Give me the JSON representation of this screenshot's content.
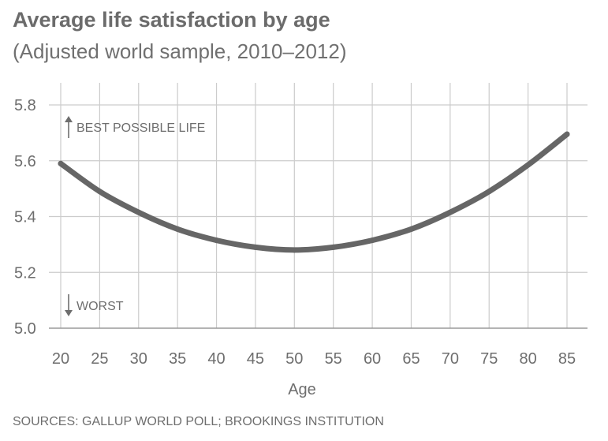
{
  "chart_data": {
    "type": "line",
    "title": "Average life satisfaction by age",
    "subtitle": "(Adjusted world sample, 2010–2012)",
    "xlabel": "Age",
    "ylabel": "",
    "x": [
      20,
      25,
      30,
      35,
      40,
      45,
      50,
      55,
      60,
      65,
      70,
      75,
      80,
      85
    ],
    "y_ticks": [
      "5.0",
      "5.2",
      "5.4",
      "5.6",
      "5.8"
    ],
    "xlim": [
      20,
      85
    ],
    "ylim": [
      5.0,
      5.8
    ],
    "grid": true,
    "legend": "none",
    "series": [
      {
        "values": [
          5.59,
          5.49,
          5.415,
          5.355,
          5.315,
          5.29,
          5.28,
          5.29,
          5.315,
          5.355,
          5.415,
          5.49,
          5.585,
          5.695
        ],
        "color": "#666666"
      }
    ],
    "annotations": {
      "top": "BEST POSSIBLE LIFE",
      "bottom": "WORST"
    },
    "source": "SOURCES: GALLUP WORLD POLL; BROOKINGS INSTITUTION"
  },
  "colors": {
    "line": "#666666",
    "grid": "#cccccc",
    "text": "#6e6e6e"
  }
}
